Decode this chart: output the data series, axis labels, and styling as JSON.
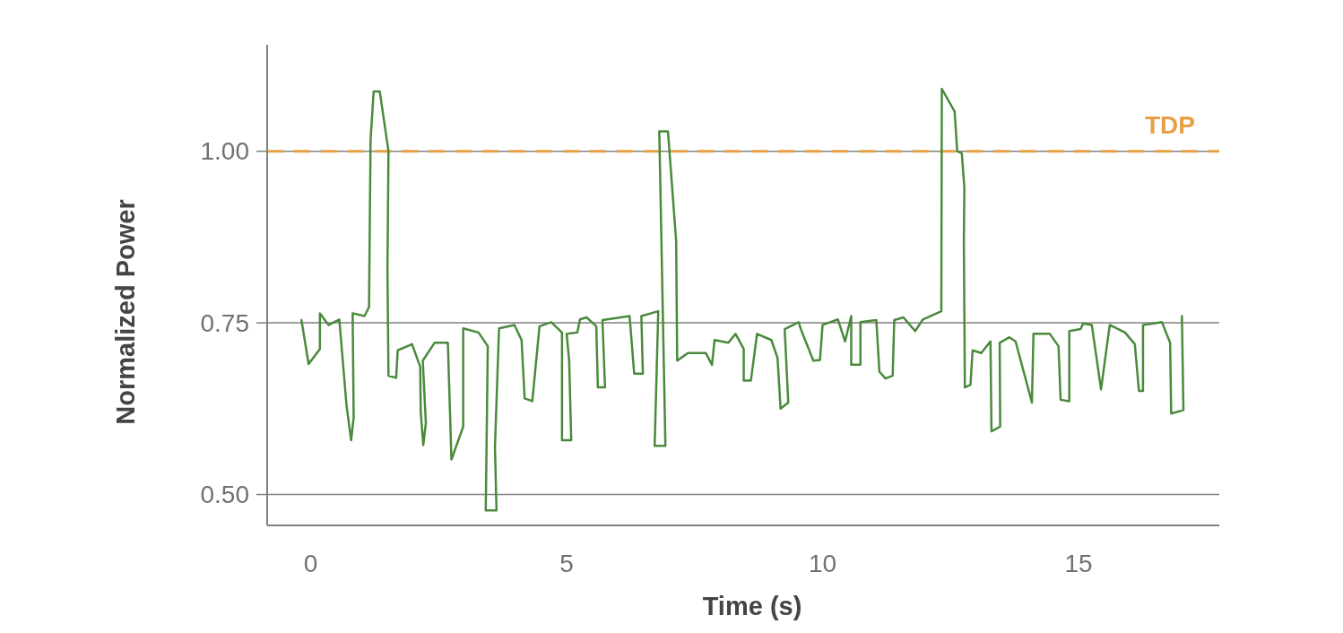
{
  "chart_data": {
    "type": "line",
    "xlabel": "Time (s)",
    "ylabel": "Normalized Power",
    "xlim": [
      -0.85,
      17.75
    ],
    "ylim": [
      0.455,
      1.155
    ],
    "xticks": [
      0,
      5,
      10,
      15
    ],
    "yticks": [
      {
        "value": 0.5,
        "label": "0.50"
      },
      {
        "value": 0.75,
        "label": "0.75"
      },
      {
        "value": 1.0,
        "label": "1.00"
      }
    ],
    "grid": "y",
    "marker": "none",
    "line_style": "solid",
    "ref_lines": [
      {
        "axis": "y",
        "value": 1.0,
        "label": "TDP",
        "color": "#e8a045",
        "line_style": "dashed"
      }
    ],
    "series": [
      {
        "color": "#4a8a3c",
        "x": [
          -0.18,
          -0.04,
          0.18,
          0.18,
          0.35,
          0.56,
          0.7,
          0.79,
          0.84,
          0.82,
          1.05,
          1.14,
          1.17,
          1.23,
          1.35,
          1.52,
          1.5,
          1.52,
          1.67,
          1.7,
          1.98,
          2.14,
          2.15,
          2.2,
          2.25,
          2.19,
          2.42,
          2.68,
          2.75,
          2.98,
          2.98,
          3.28,
          3.46,
          3.42,
          3.63,
          3.6,
          3.68,
          3.98,
          4.12,
          4.18,
          4.33,
          4.47,
          4.7,
          4.91,
          4.91,
          5.09,
          5.05,
          5.0,
          5.21,
          5.26,
          5.39,
          5.58,
          5.61,
          5.75,
          5.7,
          6.23,
          6.32,
          6.49,
          6.46,
          6.79,
          6.72,
          6.93,
          6.81,
          6.98,
          7.14,
          7.16,
          7.37,
          7.72,
          7.84,
          7.89,
          8.16,
          8.3,
          8.46,
          8.46,
          8.6,
          8.72,
          9.0,
          9.12,
          9.18,
          9.33,
          9.26,
          9.53,
          9.6,
          9.82,
          9.95,
          10.0,
          10.3,
          10.44,
          10.56,
          10.56,
          10.74,
          10.74,
          11.05,
          11.11,
          11.23,
          11.37,
          11.4,
          11.58,
          11.81,
          11.96,
          12.32,
          12.33,
          12.58,
          12.63,
          12.72,
          12.77,
          12.76,
          12.78,
          12.89,
          12.93,
          13.1,
          13.28,
          13.3,
          13.47,
          13.46,
          13.65,
          13.77,
          14.09,
          14.12,
          14.44,
          14.61,
          14.65,
          14.82,
          14.82,
          15.04,
          15.09,
          15.26,
          15.44,
          15.61,
          15.91,
          16.1,
          16.18,
          16.26,
          16.26,
          16.63,
          16.79,
          16.81,
          17.05,
          17.02
        ],
        "values": [
          0.754,
          0.69,
          0.712,
          0.764,
          0.747,
          0.755,
          0.63,
          0.579,
          0.612,
          0.764,
          0.76,
          0.773,
          1.016,
          1.087,
          1.087,
          1.0,
          0.826,
          0.673,
          0.67,
          0.71,
          0.719,
          0.686,
          0.62,
          0.572,
          0.604,
          0.695,
          0.721,
          0.721,
          0.551,
          0.599,
          0.742,
          0.736,
          0.716,
          0.477,
          0.477,
          0.569,
          0.742,
          0.747,
          0.725,
          0.64,
          0.636,
          0.745,
          0.751,
          0.736,
          0.579,
          0.579,
          0.695,
          0.734,
          0.736,
          0.755,
          0.758,
          0.745,
          0.656,
          0.656,
          0.754,
          0.76,
          0.676,
          0.676,
          0.76,
          0.767,
          0.571,
          0.571,
          1.029,
          1.029,
          0.869,
          0.695,
          0.706,
          0.706,
          0.689,
          0.725,
          0.721,
          0.734,
          0.712,
          0.666,
          0.666,
          0.734,
          0.725,
          0.699,
          0.625,
          0.634,
          0.741,
          0.751,
          0.736,
          0.695,
          0.696,
          0.747,
          0.755,
          0.723,
          0.76,
          0.689,
          0.689,
          0.751,
          0.754,
          0.679,
          0.669,
          0.673,
          0.754,
          0.758,
          0.738,
          0.755,
          0.767,
          1.091,
          1.058,
          1.0,
          0.997,
          0.947,
          0.869,
          0.656,
          0.66,
          0.71,
          0.706,
          0.723,
          0.592,
          0.599,
          0.721,
          0.729,
          0.723,
          0.634,
          0.734,
          0.734,
          0.716,
          0.638,
          0.636,
          0.738,
          0.741,
          0.749,
          0.747,
          0.653,
          0.747,
          0.736,
          0.719,
          0.651,
          0.651,
          0.747,
          0.751,
          0.721,
          0.618,
          0.623,
          0.76
        ]
      }
    ]
  }
}
